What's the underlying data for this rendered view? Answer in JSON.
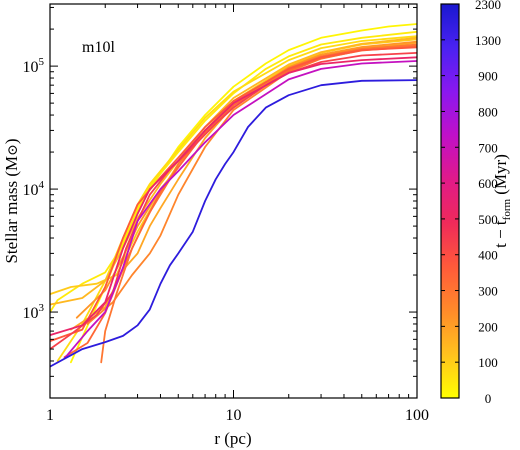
{
  "chart_data": {
    "type": "line",
    "annotation": "m10l",
    "xlabel": "r (pc)",
    "ylabel_text": "Stellar mass (M",
    "ylabel_symbol": "⊙",
    "ylabel_close": ")",
    "x_scale": "log",
    "y_scale": "log",
    "xlim": [
      1,
      100
    ],
    "ylim": [
      200,
      320000
    ],
    "x_ticks": [
      {
        "value": 1,
        "label": "1"
      },
      {
        "value": 10,
        "label": "10"
      },
      {
        "value": 100,
        "label": "100"
      }
    ],
    "y_ticks": [
      {
        "value": 1000,
        "base": "10",
        "exp": "3"
      },
      {
        "value": 10000,
        "base": "10",
        "exp": "4"
      },
      {
        "value": 100000,
        "base": "10",
        "exp": "5"
      }
    ],
    "colorbar": {
      "label_prefix": "t − t",
      "label_sub": "form",
      "label_suffix": " (Myr)",
      "min": 0,
      "max": 2300,
      "ticks": [
        "0",
        "100",
        "200",
        "300",
        "400",
        "500",
        "600",
        "700",
        "800",
        "900",
        "1300",
        "2300"
      ],
      "stops": [
        "#ffff00",
        "#ffc21e",
        "#ff8a2a",
        "#ff5a3a",
        "#ef2a5a",
        "#e01a8a",
        "#c010c8",
        "#8a18f0",
        "#4a22f2",
        "#1a18d0"
      ]
    },
    "series": [
      {
        "t": 40,
        "points": [
          [
            1.3,
            390
          ],
          [
            2.0,
            1600
          ],
          [
            2.5,
            3800
          ],
          [
            3.0,
            6600
          ],
          [
            3.5,
            10000
          ],
          [
            5,
            22000
          ],
          [
            7,
            40000
          ],
          [
            10,
            68000
          ],
          [
            15,
            105000
          ],
          [
            20,
            135000
          ],
          [
            30,
            170000
          ],
          [
            50,
            195000
          ],
          [
            70,
            210000
          ],
          [
            100,
            220000
          ]
        ]
      },
      {
        "t": 90,
        "points": [
          [
            1.0,
            1000
          ],
          [
            1.1,
            1250
          ],
          [
            1.5,
            1700
          ],
          [
            2.0,
            2100
          ],
          [
            2.5,
            3500
          ],
          [
            3.0,
            7000
          ],
          [
            3.5,
            10500
          ],
          [
            5,
            20000
          ],
          [
            7,
            36000
          ],
          [
            10,
            60000
          ],
          [
            15,
            95000
          ],
          [
            20,
            120000
          ],
          [
            30,
            150000
          ],
          [
            50,
            170000
          ],
          [
            100,
            190000
          ]
        ]
      },
      {
        "t": 150,
        "points": [
          [
            1.1,
            400
          ],
          [
            1.5,
            800
          ],
          [
            2.0,
            1800
          ],
          [
            2.5,
            4000
          ],
          [
            3.0,
            7500
          ],
          [
            3.5,
            11000
          ],
          [
            5,
            21000
          ],
          [
            7,
            38000
          ],
          [
            10,
            62000
          ],
          [
            20,
            112000
          ],
          [
            30,
            140000
          ],
          [
            50,
            160000
          ],
          [
            100,
            175000
          ]
        ]
      },
      {
        "t": 220,
        "points": [
          [
            1.0,
            1400
          ],
          [
            1.3,
            1600
          ],
          [
            1.8,
            1700
          ],
          [
            2.3,
            2000
          ],
          [
            3.0,
            4500
          ],
          [
            4.0,
            9500
          ],
          [
            5,
            16000
          ],
          [
            7,
            30000
          ],
          [
            10,
            52000
          ],
          [
            20,
            100000
          ],
          [
            30,
            128000
          ],
          [
            50,
            150000
          ],
          [
            100,
            165000
          ]
        ]
      },
      {
        "t": 300,
        "points": [
          [
            1.0,
            1150
          ],
          [
            1.5,
            1300
          ],
          [
            2.0,
            1800
          ],
          [
            2.5,
            3300
          ],
          [
            3.0,
            5800
          ],
          [
            4.0,
            11000
          ],
          [
            5,
            17000
          ],
          [
            7,
            32000
          ],
          [
            10,
            55000
          ],
          [
            20,
            103000
          ],
          [
            30,
            130000
          ],
          [
            50,
            152000
          ],
          [
            100,
            170000
          ]
        ]
      },
      {
        "t": 380,
        "points": [
          [
            1.3,
            720
          ],
          [
            2.0,
            1100
          ],
          [
            2.5,
            2200
          ],
          [
            3.0,
            3000
          ],
          [
            3.5,
            5000
          ],
          [
            4.0,
            7000
          ],
          [
            5,
            12000
          ],
          [
            7,
            26000
          ],
          [
            10,
            48000
          ],
          [
            20,
            95000
          ],
          [
            30,
            120000
          ],
          [
            50,
            140000
          ],
          [
            100,
            155000
          ]
        ]
      },
      {
        "t": 460,
        "points": [
          [
            1.4,
            900
          ],
          [
            2.0,
            1500
          ],
          [
            2.5,
            2800
          ],
          [
            3.0,
            5000
          ],
          [
            4.0,
            10000
          ],
          [
            5,
            15000
          ],
          [
            7,
            30000
          ],
          [
            10,
            50000
          ],
          [
            20,
            98000
          ],
          [
            30,
            124000
          ],
          [
            50,
            143000
          ],
          [
            100,
            158000
          ]
        ]
      },
      {
        "t": 540,
        "points": [
          [
            1.6,
            800
          ],
          [
            2.2,
            1200
          ],
          [
            2.8,
            2000
          ],
          [
            3.5,
            3000
          ],
          [
            4.0,
            4200
          ],
          [
            5,
            9000
          ],
          [
            7,
            22000
          ],
          [
            10,
            44000
          ],
          [
            20,
            90000
          ],
          [
            30,
            115000
          ],
          [
            50,
            135000
          ],
          [
            100,
            148000
          ]
        ]
      },
      {
        "t": 620,
        "points": [
          [
            1.9,
            390
          ],
          [
            2.0,
            700
          ],
          [
            2.3,
            1400
          ],
          [
            2.8,
            3300
          ],
          [
            3.5,
            6500
          ],
          [
            4.5,
            12000
          ],
          [
            5,
            16000
          ],
          [
            7,
            30000
          ],
          [
            10,
            50000
          ],
          [
            20,
            96000
          ],
          [
            30,
            120000
          ],
          [
            50,
            138000
          ],
          [
            100,
            150000
          ]
        ]
      },
      {
        "t": 700,
        "points": [
          [
            1.2,
            430
          ],
          [
            1.6,
            560
          ],
          [
            2.0,
            980
          ],
          [
            2.6,
            2600
          ],
          [
            3.2,
            5000
          ],
          [
            4.0,
            9500
          ],
          [
            5,
            15000
          ],
          [
            7,
            29000
          ],
          [
            10,
            48000
          ],
          [
            20,
            92000
          ],
          [
            30,
            116000
          ],
          [
            50,
            134000
          ],
          [
            100,
            145000
          ]
        ]
      },
      {
        "t": 780,
        "points": [
          [
            1.0,
            580
          ],
          [
            1.5,
            720
          ],
          [
            2.0,
            1600
          ],
          [
            2.5,
            4000
          ],
          [
            3.0,
            7500
          ],
          [
            4.0,
            12500
          ],
          [
            5,
            18000
          ],
          [
            7,
            32000
          ],
          [
            10,
            52000
          ],
          [
            20,
            95000
          ],
          [
            30,
            118000
          ],
          [
            50,
            135000
          ],
          [
            100,
            142000
          ]
        ]
      },
      {
        "t": 900,
        "points": [
          [
            1.0,
            500
          ],
          [
            1.3,
            660
          ],
          [
            1.8,
            950
          ],
          [
            2.2,
            1450
          ],
          [
            2.6,
            3300
          ],
          [
            3.0,
            5500
          ],
          [
            3.5,
            9000
          ],
          [
            4.5,
            14500
          ],
          [
            6,
            22000
          ],
          [
            8,
            34000
          ],
          [
            10,
            46000
          ],
          [
            15,
            70000
          ],
          [
            20,
            88000
          ],
          [
            30,
            108000
          ],
          [
            50,
            122000
          ],
          [
            100,
            128000
          ]
        ]
      },
      {
        "t": 1100,
        "points": [
          [
            1.0,
            650
          ],
          [
            1.5,
            780
          ],
          [
            2.0,
            1200
          ],
          [
            2.5,
            3300
          ],
          [
            3.0,
            6300
          ],
          [
            3.5,
            10000
          ],
          [
            5,
            17000
          ],
          [
            7,
            30000
          ],
          [
            10,
            50000
          ],
          [
            20,
            88000
          ],
          [
            30,
            104000
          ],
          [
            50,
            112000
          ],
          [
            100,
            118000
          ]
        ]
      },
      {
        "t": 1500,
        "points": [
          [
            1.2,
            420
          ],
          [
            1.6,
            700
          ],
          [
            2.0,
            1000
          ],
          [
            2.5,
            2300
          ],
          [
            3.0,
            5500
          ],
          [
            4.0,
            10000
          ],
          [
            5,
            14000
          ],
          [
            7,
            24000
          ],
          [
            10,
            40000
          ],
          [
            20,
            78000
          ],
          [
            30,
            95000
          ],
          [
            50,
            105000
          ],
          [
            100,
            110000
          ]
        ]
      },
      {
        "t": 2200,
        "points": [
          [
            1.0,
            360
          ],
          [
            1.5,
            500
          ],
          [
            2.0,
            570
          ],
          [
            2.5,
            640
          ],
          [
            3.0,
            780
          ],
          [
            3.5,
            1050
          ],
          [
            4.0,
            1700
          ],
          [
            4.5,
            2400
          ],
          [
            5,
            3000
          ],
          [
            6,
            4500
          ],
          [
            7,
            8000
          ],
          [
            8,
            12000
          ],
          [
            9,
            16000
          ],
          [
            10,
            20000
          ],
          [
            12,
            32000
          ],
          [
            15,
            46000
          ],
          [
            20,
            58000
          ],
          [
            30,
            70000
          ],
          [
            50,
            76000
          ],
          [
            100,
            77000
          ]
        ]
      }
    ]
  }
}
